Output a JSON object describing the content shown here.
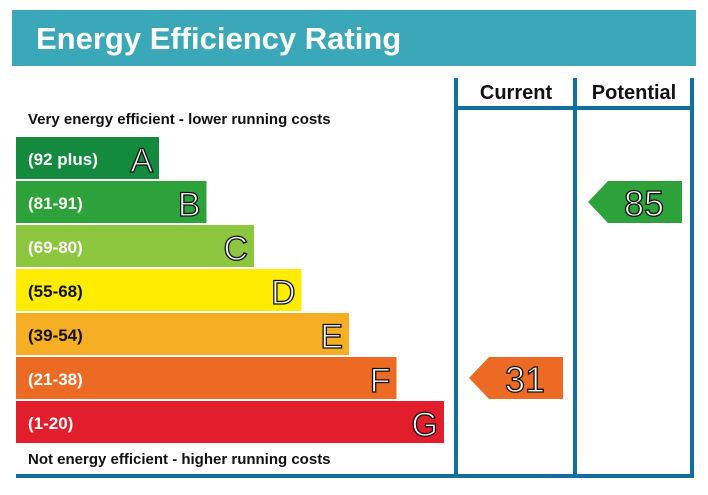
{
  "chart_data": {
    "type": "bar",
    "title": "Energy Efficiency Rating",
    "top_note": "Very energy efficient - lower running costs",
    "bottom_note": "Not energy efficient - higher running costs",
    "column_headers": {
      "current": "Current",
      "potential": "Potential"
    },
    "bands": [
      {
        "letter": "A",
        "range": "(92 plus)",
        "color": "#138a3e"
      },
      {
        "letter": "B",
        "range": "(81-91)",
        "color": "#2ea23a"
      },
      {
        "letter": "C",
        "range": "(69-80)",
        "color": "#8dc63f"
      },
      {
        "letter": "D",
        "range": "(55-68)",
        "color": "#ffec00"
      },
      {
        "letter": "E",
        "range": "(39-54)",
        "color": "#f6ae25"
      },
      {
        "letter": "F",
        "range": "(21-38)",
        "color": "#ec6a24"
      },
      {
        "letter": "G",
        "range": "(1-20)",
        "color": "#e21d2c"
      }
    ],
    "current": {
      "value": "31",
      "band": "F",
      "color": "#ec6a24"
    },
    "potential": {
      "value": "85",
      "band": "B",
      "color": "#2ea23a"
    }
  },
  "colors": {
    "header": "#3ba8b9",
    "frame": "#156f9c"
  }
}
